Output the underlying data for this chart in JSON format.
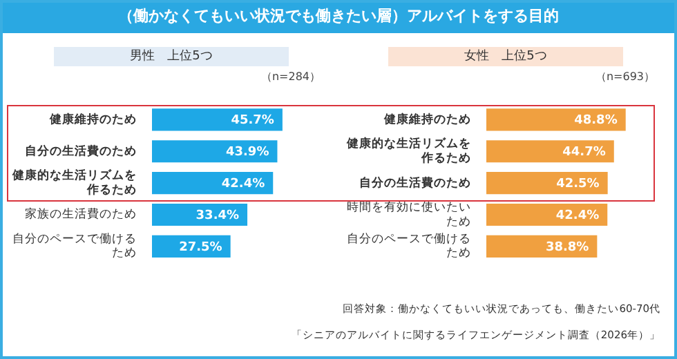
{
  "chart_data": [
    {
      "type": "other",
      "title": "（働かなくてもいい状況でも働きたい層）アルバイトをする目的"
    },
    {
      "type": "bar",
      "orientation": "horizontal",
      "title": "男性　上位5つ",
      "subtitle": "（n=284）",
      "categories": [
        "健康維持のため",
        "自分の生活費のため",
        "健康的な生活リズムを作るため",
        "家族の生活費のため",
        "自分のペースで働けるため"
      ],
      "values": [
        45.7,
        43.9,
        42.4,
        33.4,
        27.5
      ],
      "value_labels": [
        "45.7%",
        "43.9%",
        "42.4%",
        "33.4%",
        "27.5%"
      ],
      "color": "#1ea8e6",
      "tick_labels": "y",
      "grid": false,
      "legend": false
    },
    {
      "type": "bar",
      "orientation": "horizontal",
      "title": "女性　上位5つ",
      "subtitle": "（n=693）",
      "categories": [
        "健康維持のため",
        "健康的な生活リズムを作るため",
        "自分の生活費のため",
        "時間を有効に使いたいため",
        "自分のペースで働けるため"
      ],
      "values": [
        48.8,
        44.7,
        42.5,
        42.4,
        38.8
      ],
      "value_labels": [
        "48.8%",
        "44.7%",
        "42.5%",
        "42.4%",
        "38.8%"
      ],
      "color": "#f0a040",
      "tick_labels": "y",
      "grid": false,
      "legend": false
    },
    {
      "type": "other",
      "annotations": [
        "回答対象：働かなくてもいい状況であっても、働きたい60-70代",
        "「シニアのアルバイトに関するライフエンゲージメント調査（2026年）」"
      ]
    }
  ]
}
